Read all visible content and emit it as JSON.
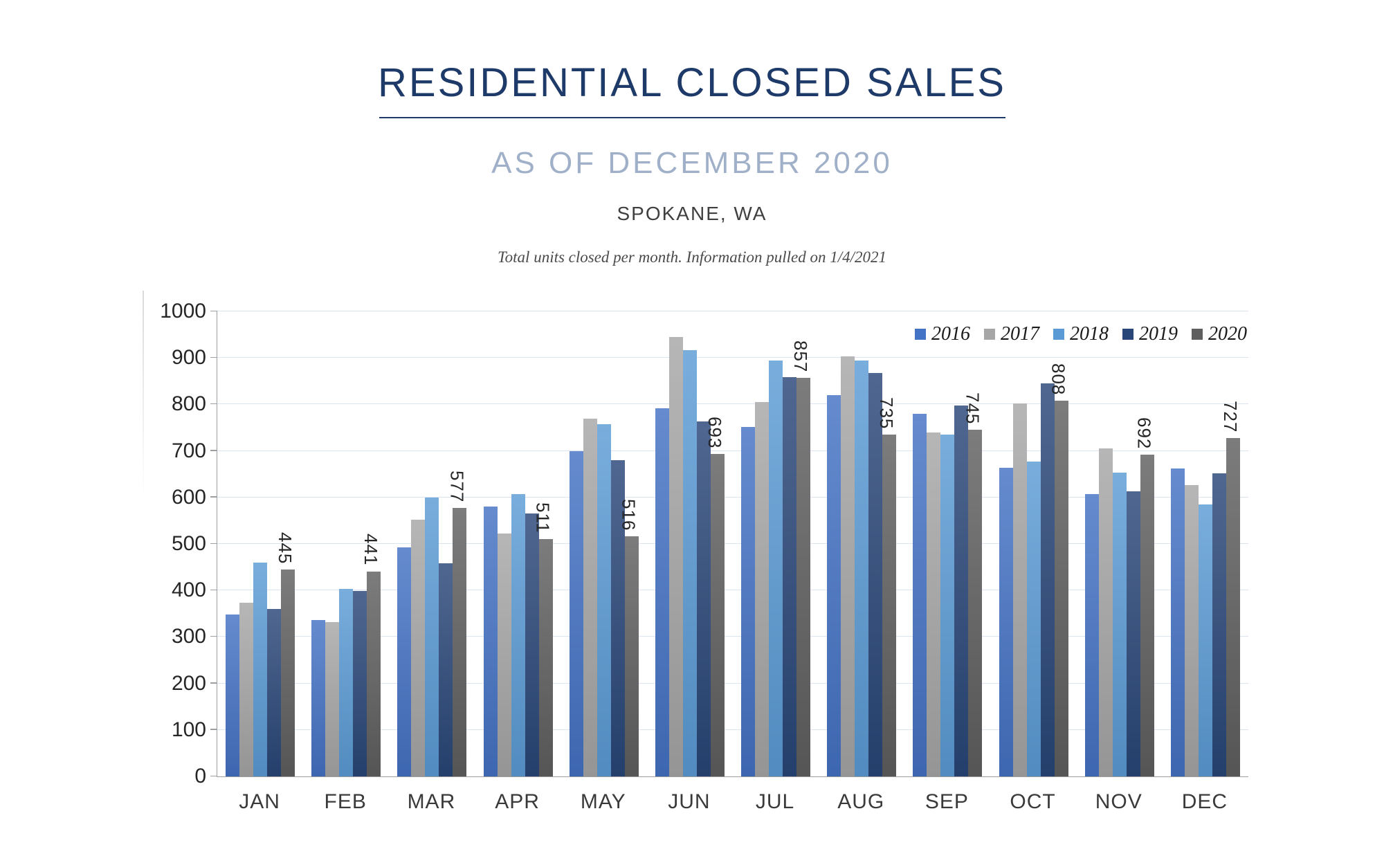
{
  "header": {
    "title": "RESIDENTIAL CLOSED SALES",
    "subtitle": "AS OF DECEMBER 2020",
    "location": "SPOKANE, WA",
    "note": "Total units closed per month.  Information pulled on 1/4/2021"
  },
  "chart_data": {
    "type": "bar",
    "title": "RESIDENTIAL CLOSED SALES",
    "subtitle": "AS OF DECEMBER 2020",
    "xlabel": "",
    "ylabel": "",
    "ylim": [
      0,
      1000
    ],
    "ytick_step": 100,
    "grid": true,
    "legend_position": "top-right",
    "gridline_color": "#DCE3F1",
    "axis_color": "#9E9E9E",
    "categories": [
      "JAN",
      "FEB",
      "MAR",
      "APR",
      "MAY",
      "JUN",
      "JUL",
      "AUG",
      "SEP",
      "OCT",
      "NOV",
      "DEC"
    ],
    "series": [
      {
        "name": "2016",
        "color": "#4472C4",
        "values": [
          348,
          337,
          492,
          581,
          700,
          792,
          752,
          820,
          780,
          663,
          607,
          662
        ]
      },
      {
        "name": "2017",
        "color": "#A6A6A6",
        "values": [
          373,
          332,
          552,
          522,
          770,
          945,
          805,
          903,
          740,
          802,
          705,
          626
        ]
      },
      {
        "name": "2018",
        "color": "#5B9BD5",
        "values": [
          460,
          403,
          600,
          607,
          758,
          917,
          895,
          894,
          735,
          677,
          653,
          585
        ]
      },
      {
        "name": "2019",
        "color": "#294678",
        "values": [
          360,
          399,
          458,
          566,
          680,
          763,
          858,
          867,
          797,
          845,
          613,
          652
        ]
      },
      {
        "name": "2020",
        "color": "#5F5F5F",
        "data_labels": true,
        "values": [
          445,
          441,
          577,
          511,
          516,
          693,
          857,
          735,
          745,
          808,
          692,
          727
        ]
      }
    ]
  }
}
